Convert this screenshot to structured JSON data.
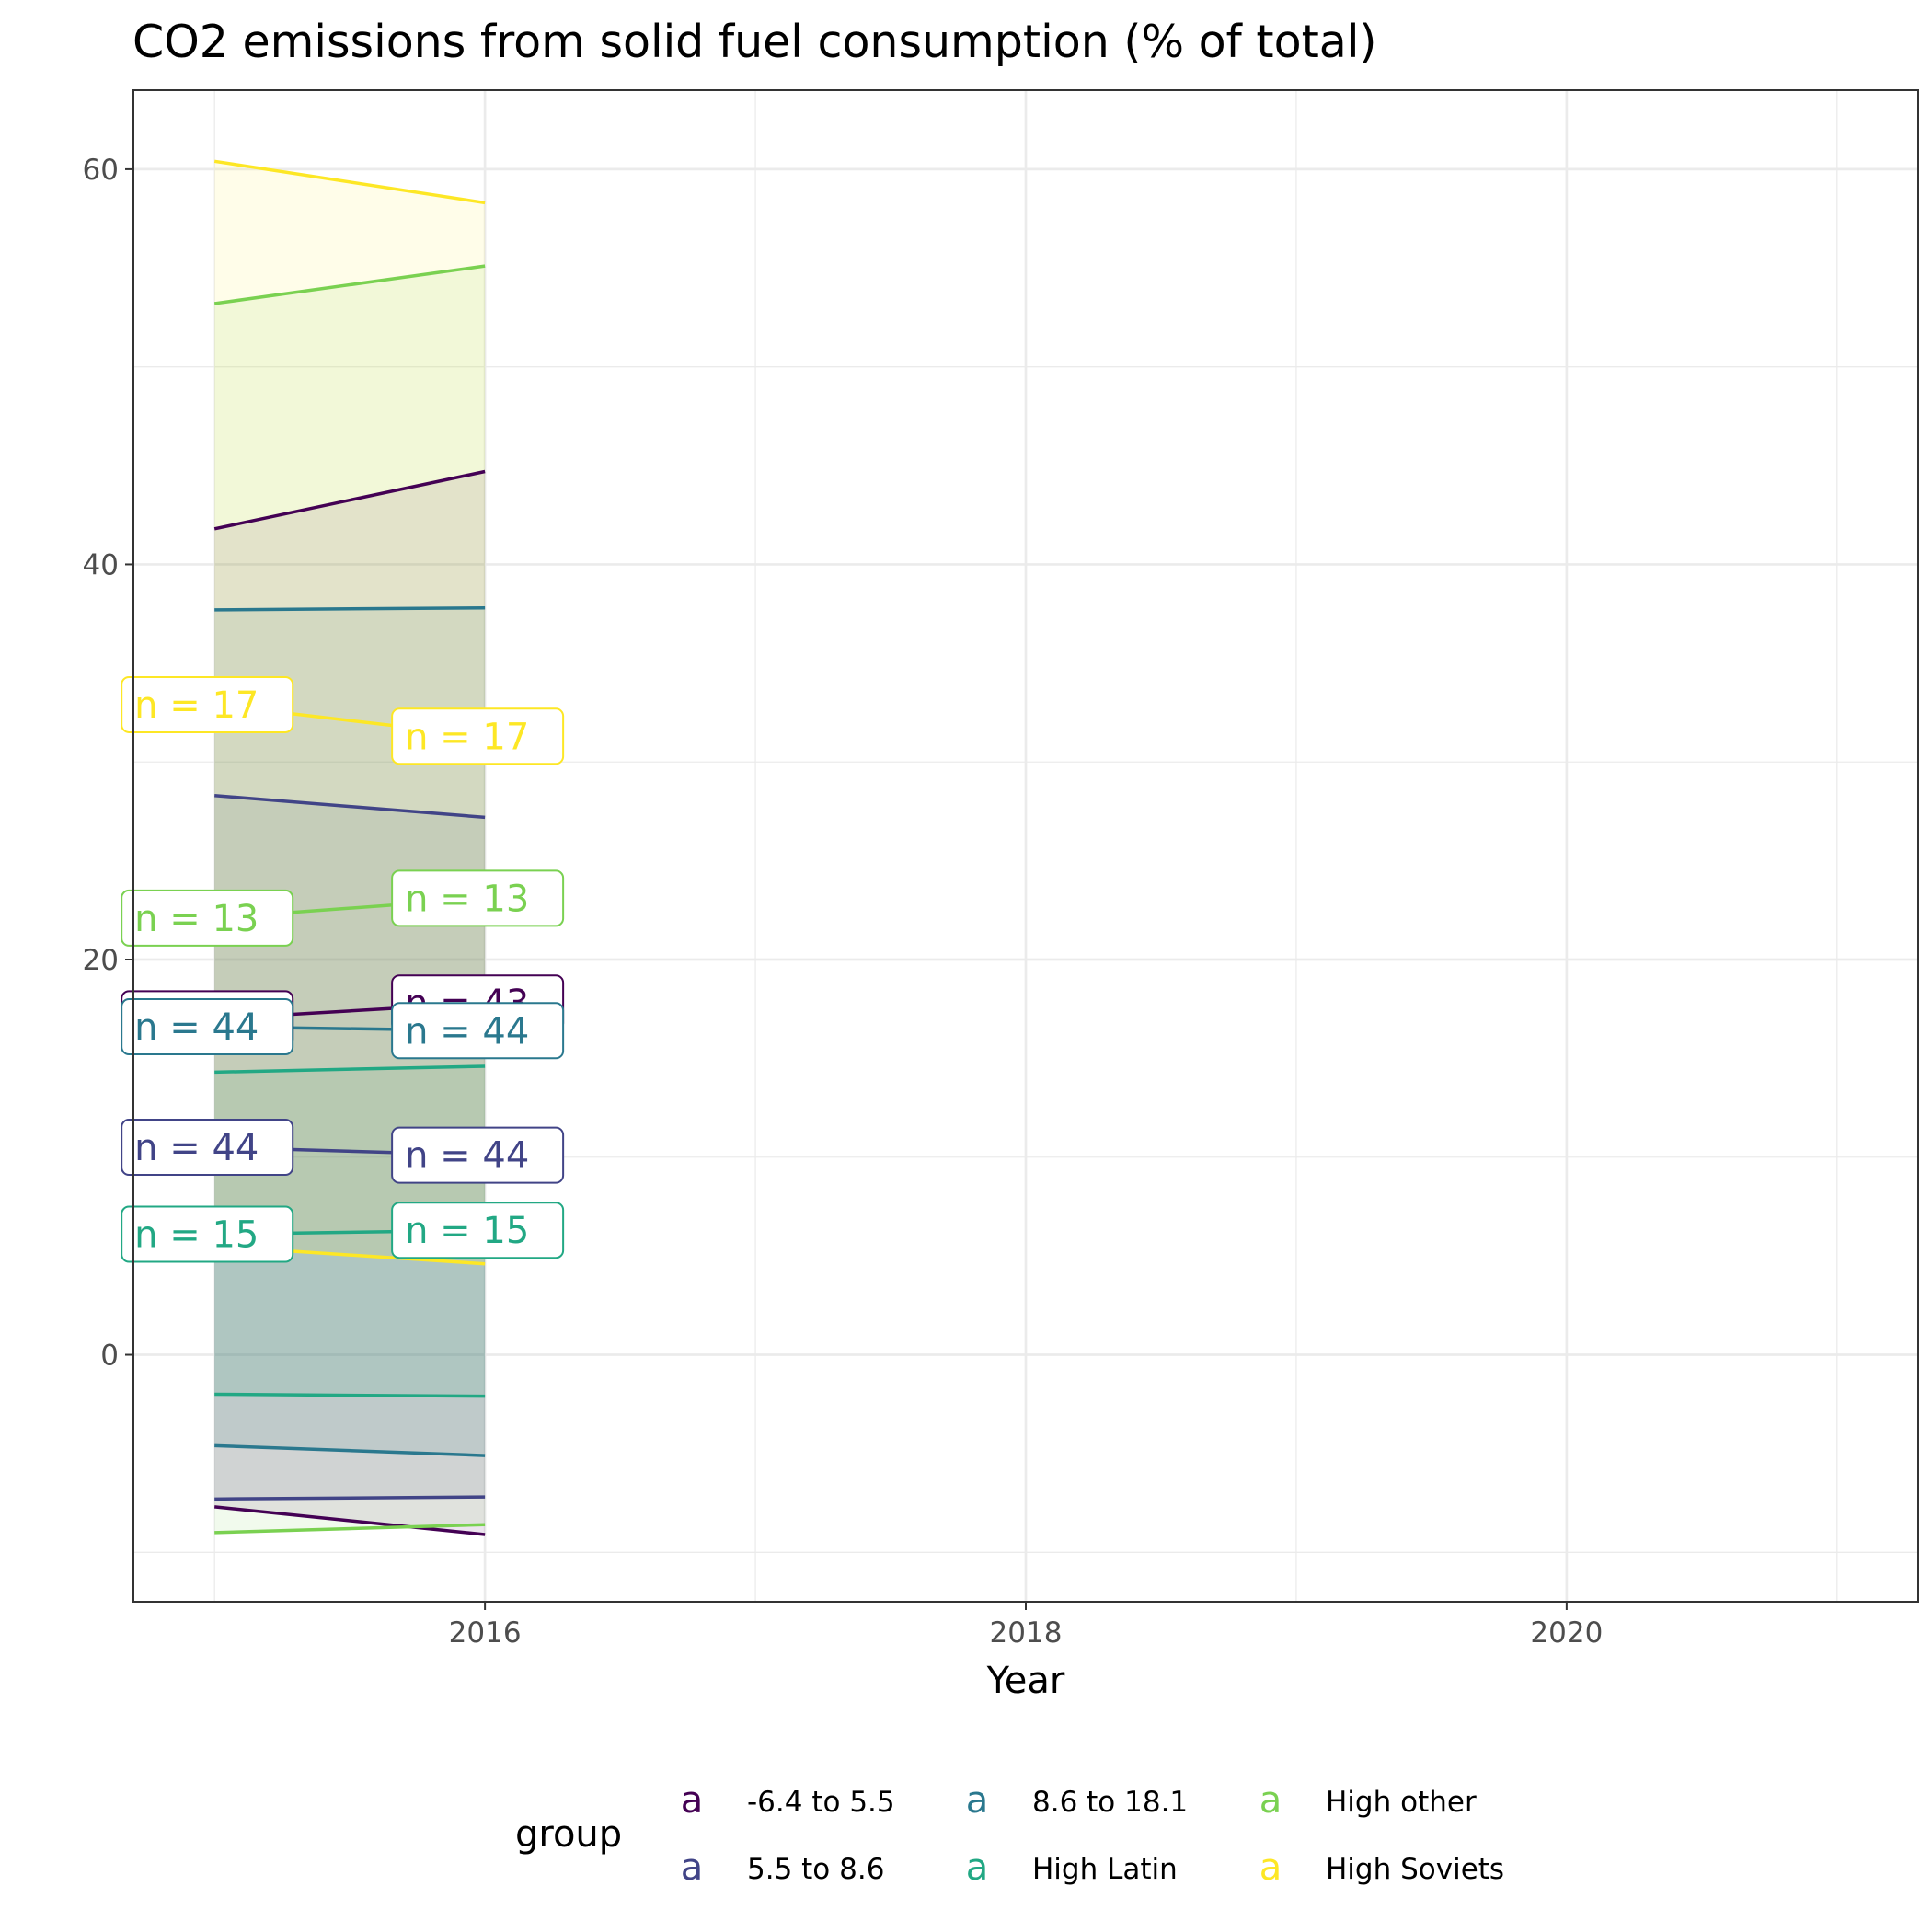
{
  "chart_data": {
    "type": "line",
    "title": "CO2 emissions from solid fuel consumption (% of total)",
    "xlabel": "Year",
    "ylabel": "",
    "xlim": [
      2014.7,
      2021.3
    ],
    "ylim": [
      -12.5,
      64
    ],
    "x_ticks": [
      2016,
      2018,
      2020
    ],
    "x_tick_labels": [
      "2016",
      "2018",
      "2020"
    ],
    "y_ticks": [
      0,
      20,
      40,
      60
    ],
    "y_tick_labels": [
      "0",
      "20",
      "40",
      "60"
    ],
    "grid": true,
    "legend": {
      "title": "group",
      "position": "bottom",
      "key_glyph": "a",
      "entries": [
        {
          "label": "-6.4 to 5.5",
          "color": "#440154"
        },
        {
          "label": "5.5 to 8.6",
          "color": "#414487"
        },
        {
          "label": "8.6 to 18.1",
          "color": "#2A788E"
        },
        {
          "label": "High Latin",
          "color": "#22A884"
        },
        {
          "label": "High other",
          "color": "#7AD151"
        },
        {
          "label": "High Soviets",
          "color": "#FDE725"
        }
      ]
    },
    "ribbons": [
      {
        "x": [
          2015,
          2016
        ],
        "ymin": [
          -7.7,
          -9.1
        ],
        "ymax": [
          41.8,
          44.7
        ],
        "fill": "#440154"
      },
      {
        "x": [
          2015,
          2016
        ],
        "ymin": [
          -7.3,
          -7.2
        ],
        "ymax": [
          28.3,
          27.2
        ],
        "fill": "#414487"
      },
      {
        "x": [
          2015,
          2016
        ],
        "ymin": [
          -4.6,
          -5.1
        ],
        "ymax": [
          37.7,
          37.8
        ],
        "fill": "#2A788E"
      },
      {
        "x": [
          2015,
          2016
        ],
        "ymin": [
          -2.0,
          -2.1
        ],
        "ymax": [
          14.3,
          14.6
        ],
        "fill": "#22A884"
      },
      {
        "x": [
          2015,
          2016
        ],
        "ymin": [
          -9.0,
          -8.6
        ],
        "ymax": [
          53.2,
          55.1
        ],
        "fill": "#7AD151"
      },
      {
        "x": [
          2015,
          2016
        ],
        "ymin": [
          5.5,
          4.6
        ],
        "ymax": [
          60.4,
          58.3
        ],
        "fill": "#FDE725"
      }
    ],
    "series": [
      {
        "name": "-6.4 to 5.5",
        "color": "#440154",
        "x": [
          2015,
          2016
        ],
        "mean": [
          17.0,
          17.8
        ],
        "low": [
          -7.7,
          -9.1
        ],
        "high": [
          41.8,
          44.7
        ],
        "n_labels": [
          "n = 43",
          "n = 43"
        ]
      },
      {
        "name": "5.5 to 8.6",
        "color": "#414487",
        "x": [
          2015,
          2016
        ],
        "mean": [
          10.5,
          10.1
        ],
        "low": [
          -7.3,
          -7.2
        ],
        "high": [
          28.3,
          27.2
        ],
        "n_labels": [
          "n = 44",
          "n = 44"
        ]
      },
      {
        "name": "8.6 to 18.1",
        "color": "#2A788E",
        "x": [
          2015,
          2016
        ],
        "mean": [
          16.6,
          16.4
        ],
        "low": [
          -4.6,
          -5.1
        ],
        "high": [
          37.7,
          37.8
        ],
        "n_labels": [
          "n = 44",
          "n = 44"
        ]
      },
      {
        "name": "High Latin",
        "color": "#22A884",
        "x": [
          2015,
          2016
        ],
        "mean": [
          6.1,
          6.3
        ],
        "low": [
          -2.0,
          -2.1
        ],
        "high": [
          14.3,
          14.6
        ],
        "n_labels": [
          "n = 15",
          "n = 15"
        ]
      },
      {
        "name": "High other",
        "color": "#7AD151",
        "x": [
          2015,
          2016
        ],
        "mean": [
          22.1,
          23.1
        ],
        "low": [
          -9.0,
          -8.6
        ],
        "high": [
          53.2,
          55.1
        ],
        "n_labels": [
          "n = 13",
          "n = 13"
        ]
      },
      {
        "name": "High Soviets",
        "color": "#FDE725",
        "x": [
          2015,
          2016
        ],
        "mean": [
          32.9,
          31.3
        ],
        "low": [
          5.5,
          4.6
        ],
        "high": [
          60.4,
          58.3
        ],
        "n_labels": [
          "n = 17",
          "n = 17"
        ]
      }
    ]
  }
}
